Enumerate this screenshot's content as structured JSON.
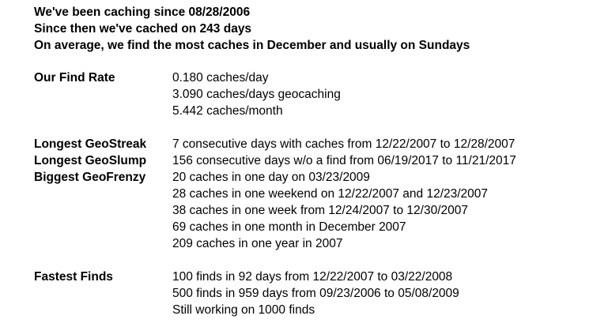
{
  "header": {
    "line1": "We've been caching since 08/28/2006",
    "line2": "Since then we've cached on 243 days",
    "line3": "On average, we find the most caches in December and usually on Sundays"
  },
  "find_rate": {
    "label": "Our Find Rate",
    "values": [
      "0.180 caches/day",
      "3.090 caches/days geocaching",
      "5.442 caches/month"
    ]
  },
  "streaks": {
    "geostreak_label": "Longest GeoStreak",
    "geostreak_value": "7 consecutive days with caches from 12/22/2007 to 12/28/2007",
    "geoslump_label": "Longest GeoSlump",
    "geoslump_value": "156 consecutive days w/o a find from 06/19/2017 to 11/21/2017",
    "geofrenzy_label": "Biggest GeoFrenzy",
    "geofrenzy_values": [
      "20 caches in one day on 03/23/2009",
      "28 caches in one weekend on 12/22/2007 and 12/23/2007",
      "38 caches in one week from 12/24/2007 to 12/30/2007",
      "69 caches in one month in December 2007",
      "209 caches in one year in 2007"
    ]
  },
  "fastest": {
    "label": "Fastest Finds",
    "values": [
      "100 finds in 92 days from 12/22/2007 to 03/22/2008",
      "500 finds in 959 days from 09/23/2006 to 05/08/2009",
      "Still working on 1000 finds"
    ]
  }
}
